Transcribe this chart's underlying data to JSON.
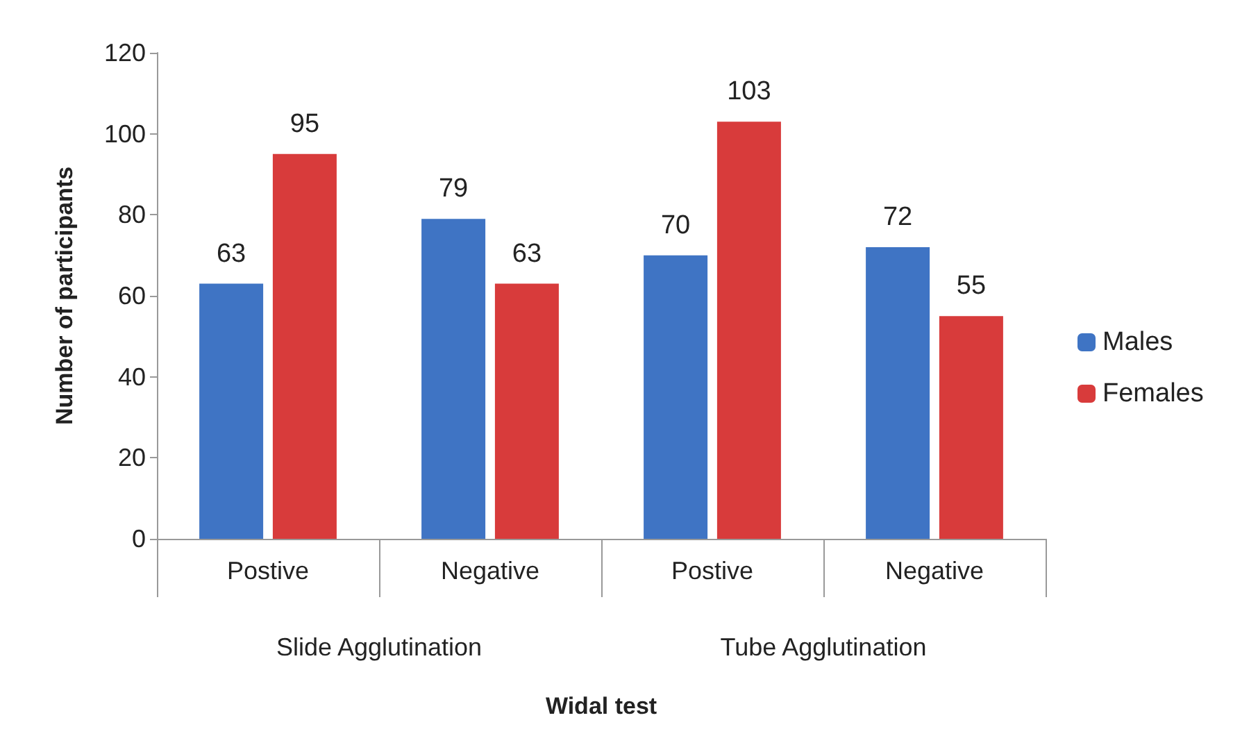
{
  "chart_data": {
    "type": "bar",
    "xlabel": "Widal test",
    "ylabel": "Number of participants",
    "categories": [
      "Postive",
      "Negative",
      "Postive",
      "Negative"
    ],
    "series": [
      {
        "name": "Males",
        "color": "#3f74c4",
        "values": [
          63,
          79,
          70,
          72
        ]
      },
      {
        "name": "Females",
        "color": "#d83b3b",
        "values": [
          95,
          63,
          103,
          55
        ]
      }
    ],
    "annotations": [
      "Slide Agglutination",
      "Tube Agglutination"
    ],
    "ylim": [
      0,
      120
    ],
    "yticks": [
      0,
      20,
      40,
      60,
      80,
      100,
      120
    ],
    "data_labels": true,
    "grid": false,
    "legend": "right"
  }
}
